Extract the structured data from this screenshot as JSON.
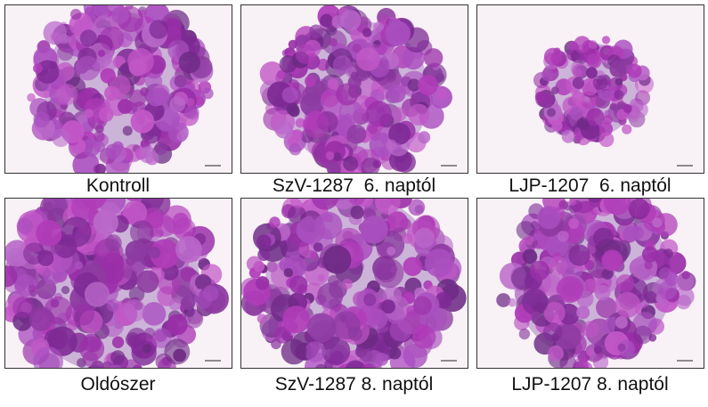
{
  "panels": [
    {
      "caption": "Kontroll"
    },
    {
      "caption": "SzV-1287  6. naptól"
    },
    {
      "caption": "LJP-1207  6. naptól"
    },
    {
      "caption": "Oldószer"
    },
    {
      "caption": "SzV-1287 8. naptól"
    },
    {
      "caption": "LJP-1207 8. naptól"
    }
  ]
}
